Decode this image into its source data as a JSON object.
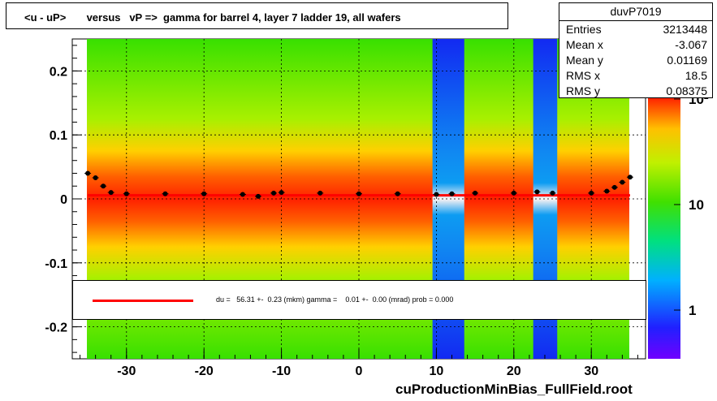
{
  "title": "<u - uP>       versus   vP =>  gamma for barrel 4, layer 7 ladder 19, all wafers",
  "stats": {
    "name": "duvP7019",
    "rows": [
      {
        "key": "Entries",
        "value": "3213448"
      },
      {
        "key": "Mean x",
        "value": "-3.067"
      },
      {
        "key": "Mean y",
        "value": "0.01169"
      },
      {
        "key": "RMS x",
        "value": "18.5"
      },
      {
        "key": "RMS y",
        "value": "0.08375"
      }
    ]
  },
  "legend": {
    "text": "du =   56.31 +-  0.23 (mkm) gamma =    0.01 +-  0.00 (mrad) prob = 0.000",
    "color": "#ff0000"
  },
  "footer": "cuProductionMinBias_FullField.root",
  "chart_data": {
    "type": "heatmap",
    "xlim": [
      -37,
      37
    ],
    "ylim": [
      -0.25,
      0.25
    ],
    "x_ticks": [
      -30,
      -20,
      -10,
      0,
      10,
      20,
      30
    ],
    "y_ticks": [
      -0.2,
      -0.1,
      0,
      0.1,
      0.2
    ],
    "x_tick_labels": [
      "-30",
      "-20",
      "-10",
      "0",
      "10",
      "20",
      "30"
    ],
    "y_tick_labels": [
      "-0.2",
      "-0.1",
      "0",
      "0.1",
      "0.2"
    ],
    "z_scale": "log",
    "z_tick_labels": [
      "1",
      "10",
      "10²"
    ],
    "grid": true,
    "fit_line": {
      "x": [
        -35,
        35
      ],
      "y": [
        0.0056,
        0.0056
      ],
      "color": "#ff0000"
    },
    "profile_points": {
      "x": [
        -35,
        -34,
        -33,
        -32,
        -30,
        -25,
        -20,
        -15,
        -13,
        -11,
        -10,
        -5,
        0,
        5,
        10,
        12,
        15,
        20,
        23,
        25,
        30,
        32,
        33,
        34,
        35
      ],
      "y": [
        0.04,
        0.033,
        0.02,
        0.01,
        0.008,
        0.008,
        0.008,
        0.007,
        0.004,
        0.009,
        0.01,
        0.009,
        0.008,
        0.008,
        0.007,
        0.008,
        0.009,
        0.009,
        0.011,
        0.009,
        0.009,
        0.012,
        0.018,
        0.026,
        0.034
      ]
    },
    "strip_bands_x": [
      [
        9.5,
        13.6
      ],
      [
        22.5,
        25.6
      ]
    ]
  }
}
